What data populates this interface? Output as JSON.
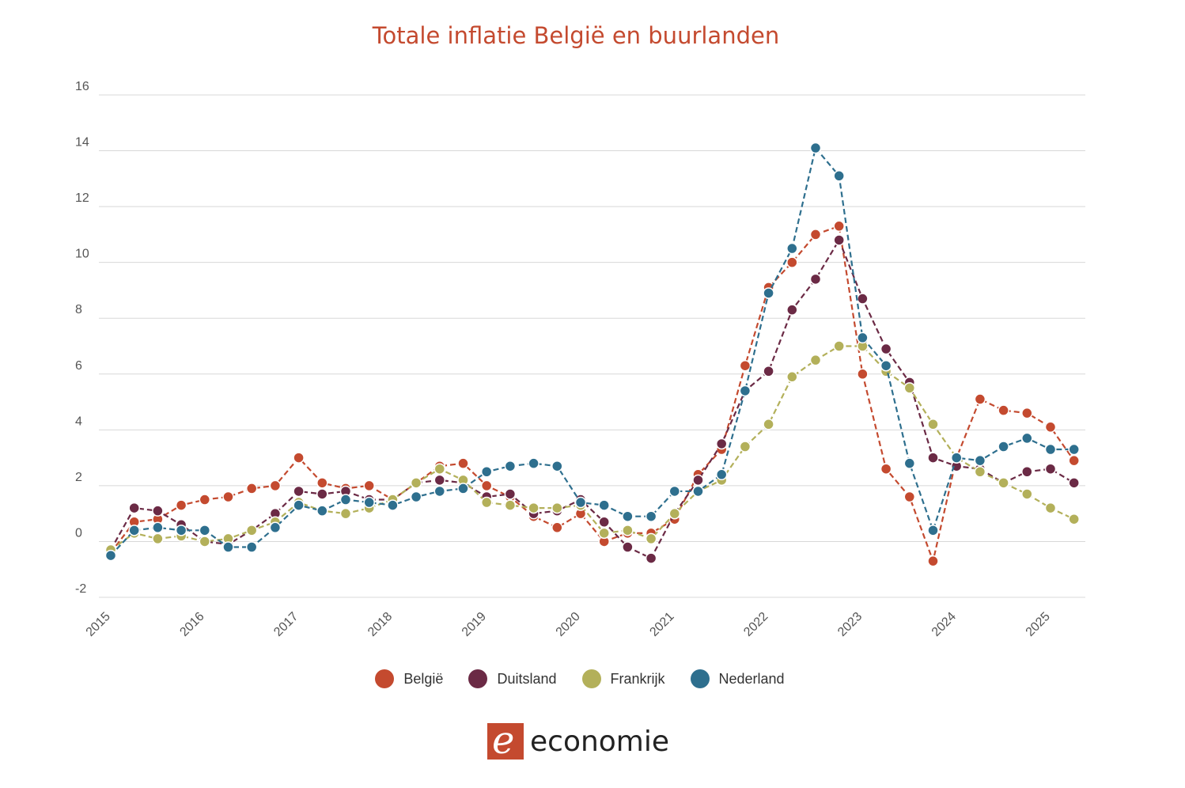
{
  "chart_data": {
    "type": "line",
    "title": "Totale inflatie België en buurlanden",
    "xlabel": "",
    "ylabel": "",
    "ylim": [
      -2,
      16
    ],
    "yticks": [
      -2,
      0,
      2,
      4,
      6,
      8,
      10,
      12,
      14,
      16
    ],
    "xticks": [
      "2015",
      "2016",
      "2017",
      "2018",
      "2019",
      "2020",
      "2021",
      "2022",
      "2023",
      "2024",
      "2025"
    ],
    "grid": true,
    "legend_position": "bottom",
    "x": [
      "2015-Q1",
      "2015-Q2",
      "2015-Q3",
      "2015-Q4",
      "2016-Q1",
      "2016-Q2",
      "2016-Q3",
      "2016-Q4",
      "2017-Q1",
      "2017-Q2",
      "2017-Q3",
      "2017-Q4",
      "2018-Q1",
      "2018-Q2",
      "2018-Q3",
      "2018-Q4",
      "2019-Q1",
      "2019-Q2",
      "2019-Q3",
      "2019-Q4",
      "2020-Q1",
      "2020-Q2",
      "2020-Q3",
      "2020-Q4",
      "2021-Q1",
      "2021-Q2",
      "2021-Q3",
      "2021-Q4",
      "2022-Q1",
      "2022-Q2",
      "2022-Q3",
      "2022-Q4",
      "2023-Q1",
      "2023-Q2",
      "2023-Q3",
      "2023-Q4",
      "2024-Q1",
      "2024-Q2",
      "2024-Q3",
      "2024-Q4",
      "2025-Q1",
      "2025-Q2"
    ],
    "series": [
      {
        "name": "België",
        "color": "#c44a2f",
        "values": [
          -0.4,
          0.7,
          0.8,
          1.3,
          1.5,
          1.6,
          1.9,
          2.0,
          3.0,
          2.1,
          1.9,
          2.0,
          1.5,
          2.1,
          2.7,
          2.8,
          2.0,
          1.6,
          0.9,
          0.5,
          1.0,
          0.0,
          0.3,
          0.3,
          0.8,
          2.4,
          3.3,
          6.3,
          9.1,
          10.0,
          11.0,
          11.3,
          6.0,
          2.6,
          1.6,
          -0.7,
          3.0,
          5.1,
          4.7,
          4.6,
          4.1,
          2.9
        ]
      },
      {
        "name": "Duitsland",
        "color": "#6b2a45",
        "values": [
          -0.3,
          1.2,
          1.1,
          0.6,
          0.0,
          -0.1,
          0.4,
          1.0,
          1.8,
          1.7,
          1.8,
          1.5,
          1.5,
          2.1,
          2.2,
          2.1,
          1.6,
          1.7,
          1.0,
          1.1,
          1.5,
          0.7,
          -0.2,
          -0.6,
          1.0,
          2.2,
          3.5,
          5.4,
          6.1,
          8.3,
          9.4,
          10.8,
          8.7,
          6.9,
          5.7,
          3.0,
          2.7,
          2.6,
          2.1,
          2.5,
          2.6,
          2.1
        ]
      },
      {
        "name": "Frankrijk",
        "color": "#b3b05a",
        "values": [
          -0.3,
          0.3,
          0.1,
          0.2,
          0.0,
          0.1,
          0.4,
          0.7,
          1.4,
          1.1,
          1.0,
          1.2,
          1.5,
          2.1,
          2.6,
          2.2,
          1.4,
          1.3,
          1.2,
          1.2,
          1.3,
          0.3,
          0.4,
          0.1,
          1.0,
          1.8,
          2.2,
          3.4,
          4.2,
          5.9,
          6.5,
          7.0,
          7.0,
          6.1,
          5.5,
          4.2,
          3.0,
          2.5,
          2.1,
          1.7,
          1.2,
          0.8
        ]
      },
      {
        "name": "Nederland",
        "color": "#2e6f8e",
        "values": [
          -0.5,
          0.4,
          0.5,
          0.4,
          0.4,
          -0.2,
          -0.2,
          0.5,
          1.3,
          1.1,
          1.5,
          1.4,
          1.3,
          1.6,
          1.8,
          1.9,
          2.5,
          2.7,
          2.8,
          2.7,
          1.4,
          1.3,
          0.9,
          0.9,
          1.8,
          1.8,
          2.4,
          5.4,
          8.9,
          10.5,
          14.1,
          13.1,
          7.3,
          6.3,
          2.8,
          0.4,
          3.0,
          2.9,
          3.4,
          3.7,
          3.3,
          3.3
        ]
      }
    ]
  },
  "logo": {
    "text": "economie",
    "mark": "e"
  }
}
